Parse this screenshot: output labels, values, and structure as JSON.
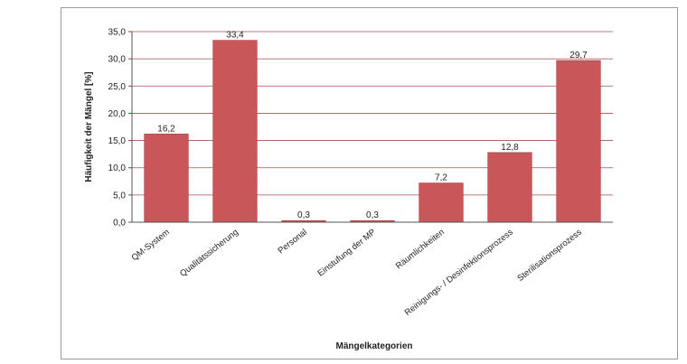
{
  "chart_data": {
    "type": "bar",
    "title": "",
    "xlabel": "Mängelkategorien",
    "ylabel": "Häufigkeit der Mängel [%]",
    "ylim": [
      0,
      35
    ],
    "yticks": [
      "0,0",
      "5,0",
      "10,0",
      "15,0",
      "20,0",
      "25,0",
      "30,0",
      "35,0"
    ],
    "grid": true,
    "categories": [
      "QM-System",
      "Qualitätssicherung",
      "Personal",
      "Einstufung der MP",
      "Räumlichkeiten",
      "Reinigungs- / Desinfektionsprozess",
      "Sterilisationsprozess"
    ],
    "values": [
      16.2,
      33.4,
      0.3,
      0.3,
      7.2,
      12.8,
      29.7
    ],
    "value_labels": [
      "16,2",
      "33,4",
      "0,3",
      "0,3",
      "7,2",
      "12,8",
      "29,7"
    ],
    "bar_color": "#c9575a",
    "bar_edge_color": "#a73c3f",
    "grid_color": "#a94f4f"
  }
}
